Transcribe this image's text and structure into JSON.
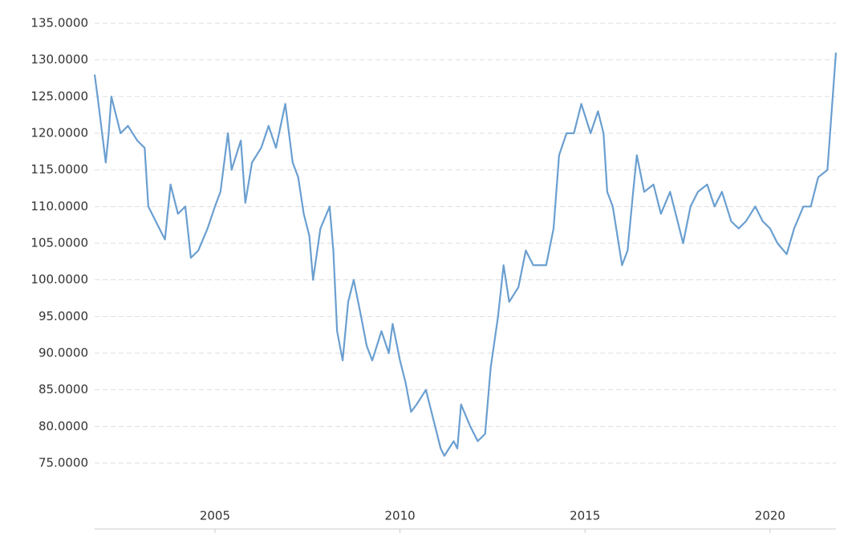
{
  "chart_data": {
    "type": "line",
    "x": [
      2001.75,
      2001.84,
      2002.05,
      2002.13,
      2002.2,
      2002.45,
      2002.65,
      2002.9,
      2003.1,
      2003.2,
      2003.4,
      2003.65,
      2003.8,
      2004.0,
      2004.2,
      2004.35,
      2004.55,
      2004.8,
      2005.0,
      2005.15,
      2005.35,
      2005.45,
      2005.7,
      2005.82,
      2006.0,
      2006.25,
      2006.45,
      2006.65,
      2006.9,
      2007.1,
      2007.25,
      2007.4,
      2007.55,
      2007.65,
      2007.85,
      2008.1,
      2008.2,
      2008.3,
      2008.45,
      2008.6,
      2008.75,
      2008.95,
      2009.1,
      2009.25,
      2009.5,
      2009.7,
      2009.8,
      2010.0,
      2010.15,
      2010.3,
      2010.45,
      2010.7,
      2010.9,
      2011.1,
      2011.2,
      2011.45,
      2011.55,
      2011.65,
      2011.9,
      2012.1,
      2012.3,
      2012.45,
      2012.65,
      2012.8,
      2012.95,
      2013.2,
      2013.4,
      2013.6,
      2013.95,
      2014.15,
      2014.3,
      2014.5,
      2014.7,
      2014.9,
      2015.15,
      2015.35,
      2015.5,
      2015.6,
      2015.75,
      2016.0,
      2016.15,
      2016.3,
      2016.4,
      2016.6,
      2016.85,
      2017.05,
      2017.3,
      2017.5,
      2017.65,
      2017.85,
      2018.05,
      2018.3,
      2018.5,
      2018.7,
      2018.95,
      2019.15,
      2019.35,
      2019.6,
      2019.8,
      2020.0,
      2020.2,
      2020.45,
      2020.65,
      2020.9,
      2021.1,
      2021.3,
      2021.55,
      2021.65,
      2021.78
    ],
    "series": [
      {
        "color": "#6a9fd0",
        "values": [
          128,
          124.5,
          116,
          120,
          125,
          120,
          121,
          119,
          118,
          110,
          108,
          105.5,
          113,
          109,
          110,
          103,
          104,
          107,
          110,
          112,
          120,
          115,
          119,
          110.5,
          116,
          118,
          121,
          118,
          124,
          116,
          114,
          109,
          106,
          100,
          107,
          110,
          104,
          93,
          89,
          97,
          100,
          95,
          91,
          89,
          93,
          90,
          94,
          89,
          86,
          82,
          83,
          85,
          81,
          77,
          76,
          78,
          77,
          83,
          80,
          78,
          79,
          88,
          95,
          102,
          97,
          99,
          104,
          102,
          102,
          107,
          117,
          120,
          120,
          124,
          120,
          123,
          120,
          112,
          110,
          102,
          104,
          112,
          117,
          112,
          113,
          109,
          112,
          108,
          105,
          110,
          112,
          113,
          110,
          112,
          108,
          107,
          108,
          110,
          108,
          107,
          105,
          103.5,
          107,
          110,
          110,
          114,
          115,
          122,
          131
        ]
      }
    ],
    "xlim": [
      2001.75,
      2021.78
    ],
    "xticks": [
      2005,
      2010,
      2015,
      2020
    ],
    "ylim": [
      66,
      137
    ],
    "yticks": [
      {
        "value": 75,
        "label": "75.0000"
      },
      {
        "value": 80,
        "label": "80.0000"
      },
      {
        "value": 85,
        "label": "85.0000"
      },
      {
        "value": 90,
        "label": "90.0000"
      },
      {
        "value": 95,
        "label": "95.0000"
      },
      {
        "value": 100,
        "label": "100.0000"
      },
      {
        "value": 105,
        "label": "105.0000"
      },
      {
        "value": 110,
        "label": "110.0000"
      },
      {
        "value": 115,
        "label": "115.0000"
      },
      {
        "value": 120,
        "label": "120.0000"
      },
      {
        "value": 125,
        "label": "125.0000"
      },
      {
        "value": 130,
        "label": "130.0000"
      },
      {
        "value": 135,
        "label": "135.0000"
      }
    ],
    "grid": true
  }
}
